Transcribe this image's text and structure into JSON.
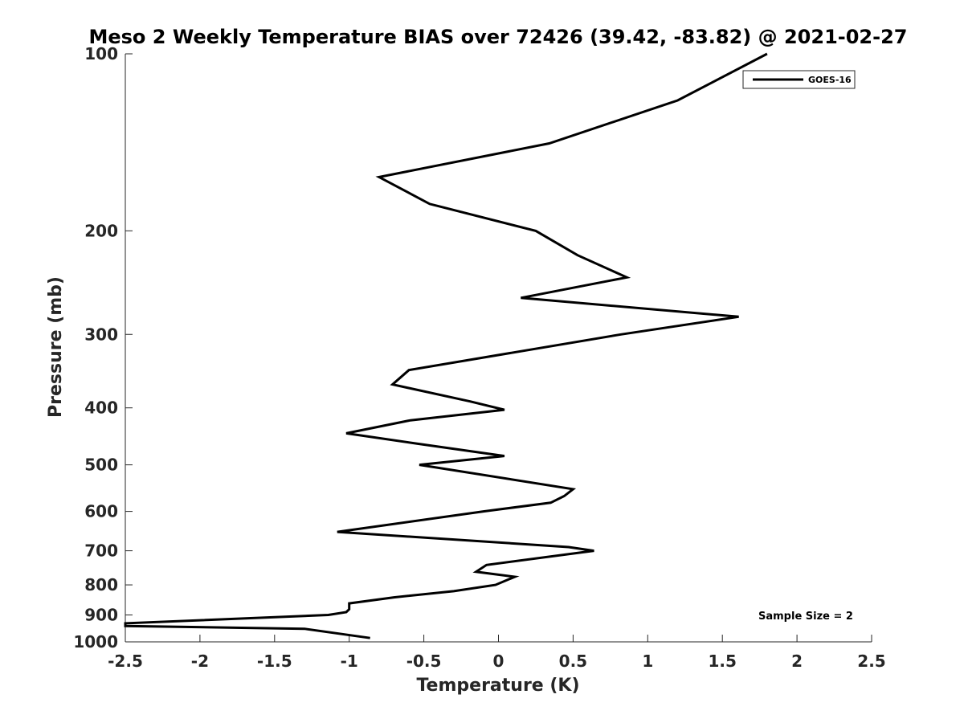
{
  "chart_data": {
    "type": "line",
    "title": "Meso 2 Weekly Temperature BIAS over 72426 (39.42, -83.82) @ 2021-02-27",
    "xlabel": "Temperature (K)",
    "ylabel": "Pressure (mb)",
    "xlim": [
      -2.5,
      2.5
    ],
    "ylim": [
      100,
      1000
    ],
    "yscale": "log",
    "y_reversed": true,
    "x_ticks": [
      "-2.5",
      "-2",
      "-1.5",
      "-1",
      "-0.5",
      "0",
      "0.5",
      "1",
      "1.5",
      "2",
      "2.5"
    ],
    "y_ticks": [
      "100",
      "200",
      "300",
      "400",
      "500",
      "600",
      "700",
      "800",
      "900",
      "1000"
    ],
    "grid": false,
    "legend_position": "top-right",
    "series": [
      {
        "name": "GOES-16",
        "color": "#000000",
        "x": [
          1.8,
          1.2,
          0.34,
          -0.8,
          -0.46,
          0.25,
          0.53,
          0.86,
          0.15,
          1.61,
          0.82,
          -0.6,
          -0.71,
          -0.19,
          0.04,
          -0.59,
          -1.02,
          -0.55,
          0.04,
          -0.53,
          0.5,
          0.44,
          0.35,
          -0.1,
          -1.08,
          0.47,
          0.64,
          -0.08,
          -0.15,
          0.11,
          -0.02,
          -0.3,
          -0.7,
          -1.0,
          -1.0,
          -1.02,
          -1.14,
          -2.5,
          -2.5,
          -1.3,
          -0.86
        ],
        "y": [
          100,
          120,
          142,
          162,
          180,
          200,
          220,
          240,
          260,
          280,
          300,
          345,
          365,
          390,
          403,
          420,
          442,
          460,
          483,
          500,
          550,
          565,
          580,
          600,
          650,
          690,
          700,
          740,
          760,
          775,
          800,
          820,
          840,
          860,
          880,
          890,
          900,
          930,
          940,
          950,
          985
        ]
      }
    ],
    "annotations": [
      "Sample Size = 2"
    ]
  }
}
